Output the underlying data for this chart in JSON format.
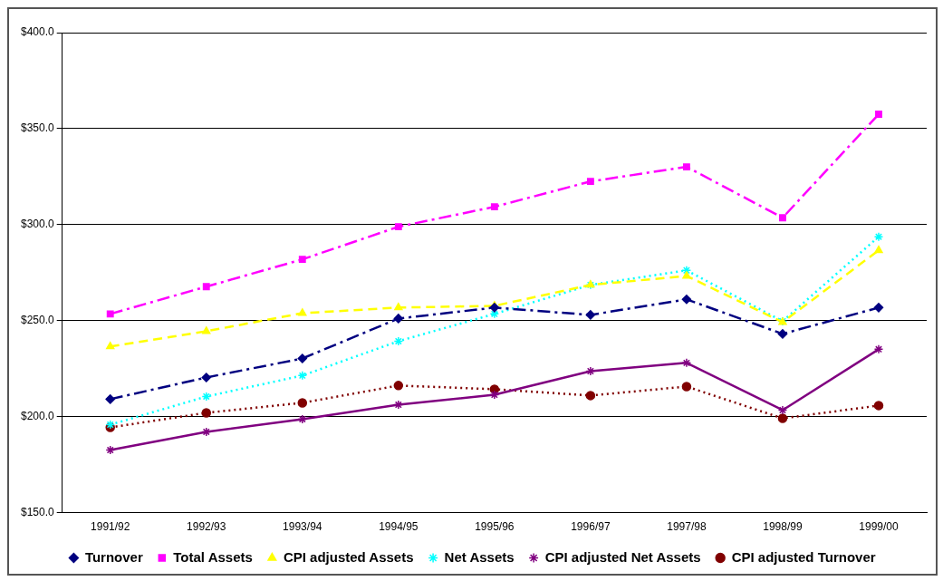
{
  "chart_data": {
    "type": "line",
    "categories": [
      "1991/92",
      "1992/93",
      "1993/94",
      "1994/95",
      "1995/96",
      "1996/97",
      "1997/98",
      "1998/99",
      "1999/00"
    ],
    "ylim": [
      150,
      400
    ],
    "yticks": [
      {
        "value": 150,
        "label": "$150.0"
      },
      {
        "value": 200,
        "label": "$200.0"
      },
      {
        "value": 250,
        "label": "$250.0"
      },
      {
        "value": 300,
        "label": "$300.0"
      },
      {
        "value": 350,
        "label": "$350.0"
      },
      {
        "value": 400,
        "label": "$400.0"
      }
    ],
    "grid": "y",
    "legend": "bottom",
    "series": [
      {
        "name": "Turnover",
        "color": "#000080",
        "marker": "diamond",
        "line_style": "dashdot",
        "values": [
          209.1,
          220.4,
          230.3,
          251.1,
          256.8,
          253.0,
          261.1,
          243.1,
          256.8
        ]
      },
      {
        "name": "Total Assets",
        "color": "#ff00ff",
        "marker": "square",
        "line_style": "dashdot",
        "values": [
          253.5,
          267.7,
          281.9,
          298.9,
          309.3,
          322.5,
          330.1,
          303.6,
          357.5
        ]
      },
      {
        "name": "CPI adjusted Assets",
        "color": "#ffff00",
        "marker": "triangle",
        "line_style": "dashed",
        "values": [
          236.5,
          244.5,
          253.9,
          256.8,
          257.7,
          268.6,
          273.3,
          249.2,
          286.6
        ]
      },
      {
        "name": "Net Assets",
        "color": "#00ffff",
        "marker": "cross",
        "line_style": "dotted",
        "values": [
          195.8,
          210.5,
          221.4,
          239.3,
          253.5,
          268.6,
          276.2,
          249.7,
          293.7
        ]
      },
      {
        "name": "CPI adjusted Net Assets",
        "color": "#800080",
        "marker": "cross",
        "line_style": "solid",
        "values": [
          182.6,
          192.1,
          198.7,
          206.2,
          211.4,
          223.7,
          228.0,
          203.4,
          235.1
        ]
      },
      {
        "name": "CPI adjusted Turnover",
        "color": "#800000",
        "marker": "circle",
        "line_style": "dotted",
        "values": [
          194.4,
          202.0,
          207.2,
          216.2,
          214.3,
          211.0,
          215.7,
          199.1,
          205.8
        ]
      }
    ]
  }
}
